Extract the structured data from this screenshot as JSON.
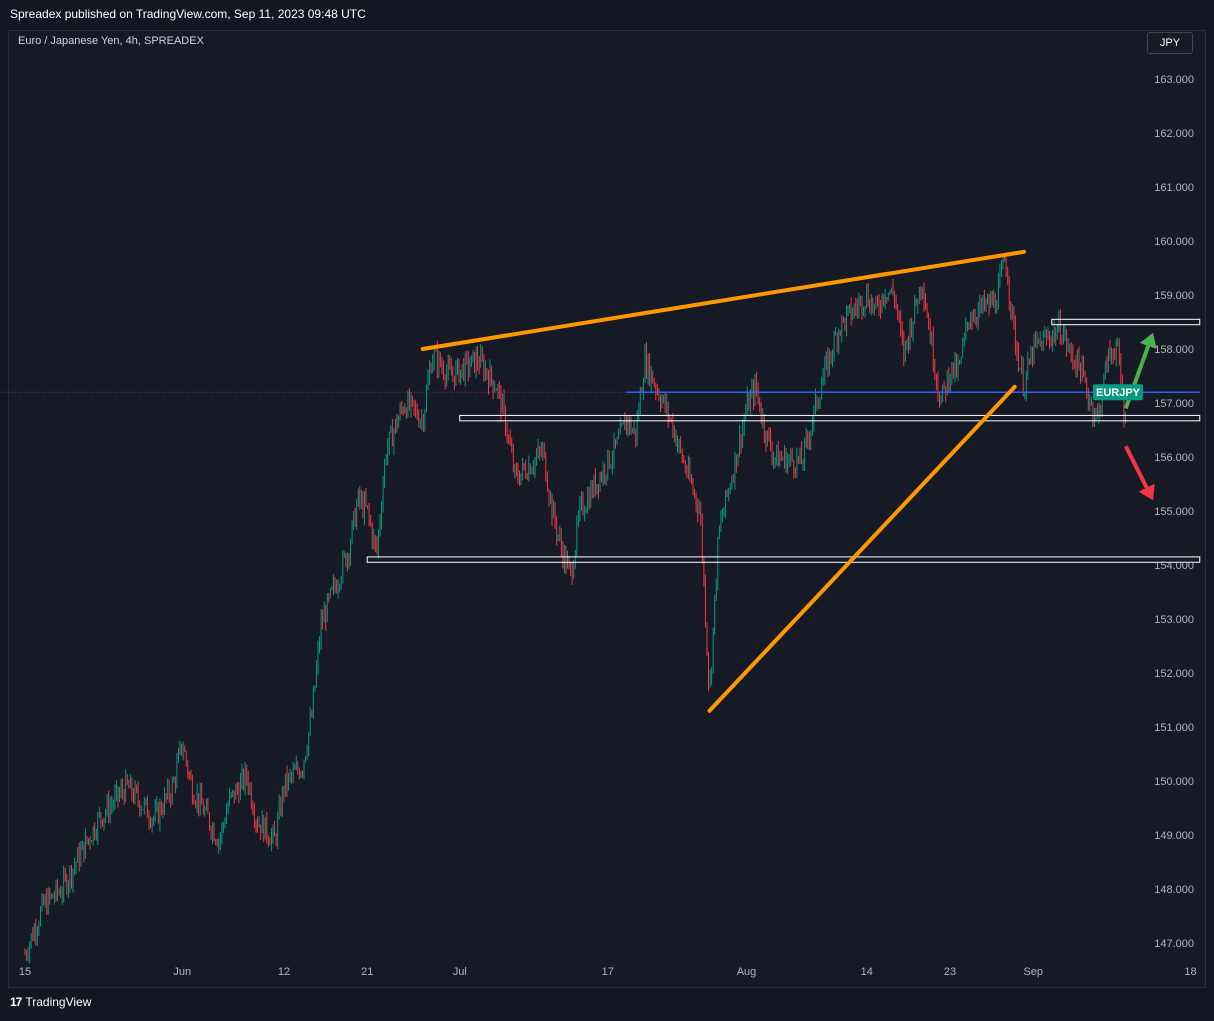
{
  "header": {
    "publisher_text": "Spreadex published on TradingView.com, Sep 11, 2023 09:48 UTC"
  },
  "symbol_title": "Euro / Japanese Yen, 4h, SPREADEX",
  "currency_button": "JPY",
  "footer": {
    "brand": "TradingView",
    "logo_icon": "tradingview-logo-icon"
  },
  "colors": {
    "background": "#161a25",
    "up_candle": "#089981",
    "down_candle": "#f23645",
    "trendline": "#ff9800",
    "price_line": "#2962ff",
    "zone_border": "#ffffff",
    "arrow_up": "#4caf50",
    "arrow_down": "#f23645"
  },
  "chart_data": {
    "type": "candlestick",
    "symbol": "EURJPY",
    "timeframe": "4h",
    "ylim": [
      146.6,
      163.6
    ],
    "y_ticks": [
      "147.000",
      "148.000",
      "149.000",
      "150.000",
      "151.000",
      "152.000",
      "153.000",
      "154.000",
      "155.000",
      "156.000",
      "157.000",
      "158.000",
      "159.000",
      "160.000",
      "161.000",
      "162.000",
      "163.000"
    ],
    "x_ticks": [
      "15",
      "Jun",
      "12",
      "21",
      "Jul",
      "17",
      "Aug",
      "14",
      "23",
      "Sep",
      "18"
    ],
    "last_price_label": "EURJPY",
    "last_price": 157.2,
    "price_path": [
      [
        "2023-05-15",
        146.8
      ],
      [
        "2023-05-17",
        147.7
      ],
      [
        "2023-05-19",
        148.0
      ],
      [
        "2023-05-23",
        149.3
      ],
      [
        "2023-05-26",
        149.9
      ],
      [
        "2023-05-29",
        149.3
      ],
      [
        "2023-05-31",
        149.9
      ],
      [
        "2023-06-01",
        150.7
      ],
      [
        "2023-06-02",
        149.9
      ],
      [
        "2023-06-05",
        148.9
      ],
      [
        "2023-06-06",
        149.6
      ],
      [
        "2023-06-08",
        150.1
      ],
      [
        "2023-06-09",
        149.3
      ],
      [
        "2023-06-11",
        148.9
      ],
      [
        "2023-06-12",
        149.9
      ],
      [
        "2023-06-14",
        150.3
      ],
      [
        "2023-06-15",
        151.2
      ],
      [
        "2023-06-16",
        152.9
      ],
      [
        "2023-06-19",
        154.3
      ],
      [
        "2023-06-20",
        155.2
      ],
      [
        "2023-06-21",
        155.0
      ],
      [
        "2023-06-22",
        154.2
      ],
      [
        "2023-06-23",
        156.1
      ],
      [
        "2023-06-25",
        157.0
      ],
      [
        "2023-06-27",
        156.7
      ],
      [
        "2023-06-28",
        157.9
      ],
      [
        "2023-06-30",
        157.5
      ],
      [
        "2023-07-03",
        157.8
      ],
      [
        "2023-07-05",
        157.3
      ],
      [
        "2023-07-06",
        156.6
      ],
      [
        "2023-07-07",
        155.6
      ],
      [
        "2023-07-10",
        156.1
      ],
      [
        "2023-07-11",
        155.0
      ],
      [
        "2023-07-12",
        154.3
      ],
      [
        "2023-07-13",
        153.8
      ],
      [
        "2023-07-14",
        155.0
      ],
      [
        "2023-07-17",
        155.9
      ],
      [
        "2023-07-18",
        156.2
      ],
      [
        "2023-07-19",
        156.7
      ],
      [
        "2023-07-20",
        156.4
      ],
      [
        "2023-07-21",
        157.8
      ],
      [
        "2023-07-24",
        156.6
      ],
      [
        "2023-07-25",
        156.0
      ],
      [
        "2023-07-26",
        155.5
      ],
      [
        "2023-07-27",
        155.0
      ],
      [
        "2023-07-28",
        151.6
      ],
      [
        "2023-07-29",
        154.6
      ],
      [
        "2023-07-31",
        156.1
      ],
      [
        "2023-08-01",
        156.9
      ],
      [
        "2023-08-02",
        157.3
      ],
      [
        "2023-08-03",
        156.5
      ],
      [
        "2023-08-04",
        156.0
      ],
      [
        "2023-08-07",
        155.9
      ],
      [
        "2023-08-08",
        156.6
      ],
      [
        "2023-08-09",
        157.3
      ],
      [
        "2023-08-11",
        158.4
      ],
      [
        "2023-08-14",
        159.0
      ],
      [
        "2023-08-15",
        158.7
      ],
      [
        "2023-08-16",
        159.1
      ],
      [
        "2023-08-17",
        159.0
      ],
      [
        "2023-08-18",
        157.9
      ],
      [
        "2023-08-20",
        159.3
      ],
      [
        "2023-08-21",
        158.1
      ],
      [
        "2023-08-22",
        157.0
      ],
      [
        "2023-08-23",
        157.6
      ],
      [
        "2023-08-24",
        157.6
      ],
      [
        "2023-08-25",
        158.6
      ],
      [
        "2023-08-28",
        158.9
      ],
      [
        "2023-08-29",
        159.7
      ],
      [
        "2023-08-30",
        158.2
      ],
      [
        "2023-08-31",
        157.3
      ],
      [
        "2023-09-01",
        158.0
      ],
      [
        "2023-09-04",
        158.4
      ],
      [
        "2023-09-05",
        157.9
      ],
      [
        "2023-09-06",
        157.7
      ],
      [
        "2023-09-07",
        157.1
      ],
      [
        "2023-09-08",
        156.7
      ],
      [
        "2023-09-09",
        157.8
      ],
      [
        "2023-09-10",
        158.1
      ],
      [
        "2023-09-11",
        156.6
      ]
    ],
    "annotations": {
      "trendlines": [
        {
          "from": [
            "2023-06-27",
            158.0
          ],
          "to": [
            "2023-08-31",
            159.8
          ]
        },
        {
          "from": [
            "2023-07-28",
            151.3
          ],
          "to": [
            "2023-08-30",
            157.3
          ]
        }
      ],
      "horizontal_zones": [
        {
          "from": "2023-06-21",
          "to": "2023-09-19",
          "low": 154.05,
          "high": 154.15
        },
        {
          "from": "2023-07-01",
          "to": "2023-09-19",
          "low": 156.67,
          "high": 156.77
        },
        {
          "from": "2023-09-03",
          "to": "2023-09-19",
          "low": 158.45,
          "high": 158.55
        }
      ],
      "price_line": {
        "from": "2023-07-19",
        "to": "2023-09-19",
        "value": 157.2
      },
      "arrows": [
        {
          "direction": "up",
          "from": [
            "2023-09-11",
            156.9
          ],
          "to": [
            "2023-09-12",
            158.3
          ]
        },
        {
          "direction": "down",
          "from": [
            "2023-09-11",
            156.2
          ],
          "to": [
            "2023-09-12",
            155.2
          ]
        }
      ]
    }
  }
}
